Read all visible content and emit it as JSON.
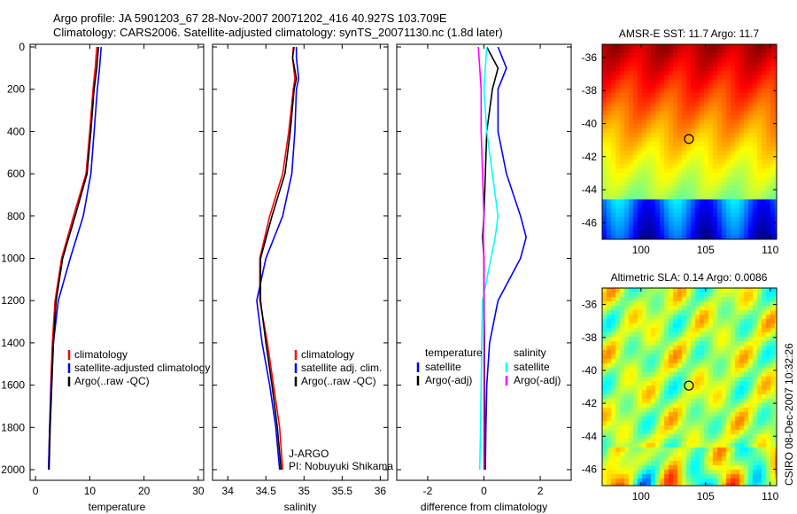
{
  "title_line1": "Argo profile: JA 5901203_67 28-Nov-2007 20071202_416 40.927S 103.709E",
  "title_line2": "Climatology: CARS2006. Satellite-adjusted climatology: synTS_20071130.nc (1.8d later)",
  "credit": "CSIRO 08-Dec-2007 10:32:26",
  "colors": {
    "climatology": "#ff0000",
    "satellite": "#0000ff",
    "argo": "#000000",
    "sal_satellite": "#00ffff",
    "sal_argo": "#ff00ff"
  },
  "chart_data": [
    {
      "type": "line",
      "xlabel": "temperature",
      "ylabel": "",
      "xlim": [
        -1,
        31
      ],
      "ylim": [
        2000,
        0
      ],
      "xticks": [
        "0",
        "10",
        "20",
        "30"
      ],
      "yticks": [
        "0",
        "200",
        "400",
        "600",
        "800",
        "1000",
        "1200",
        "1400",
        "1600",
        "1800",
        "2000"
      ],
      "depth": [
        0,
        100,
        200,
        400,
        600,
        800,
        1000,
        1200,
        1400,
        1600,
        1800,
        2000
      ],
      "series": [
        {
          "name": "climatology",
          "color": "#ff0000",
          "values": [
            11.3,
            11.0,
            10.6,
            10.0,
            9.3,
            7.0,
            4.8,
            3.6,
            3.1,
            2.8,
            2.6,
            2.4
          ]
        },
        {
          "name": "satellite-adjusted climatology",
          "color": "#0000ff",
          "values": [
            12.1,
            11.8,
            11.4,
            10.8,
            10.2,
            8.8,
            6.4,
            4.2,
            3.3,
            2.9,
            2.6,
            2.4
          ]
        },
        {
          "name": "Argo(..raw -QC)",
          "color": "#000000",
          "values": [
            11.6,
            11.3,
            10.8,
            10.2,
            9.5,
            7.3,
            5.0,
            3.8,
            3.3,
            3.0,
            2.7,
            2.5
          ]
        }
      ],
      "legend": [
        "climatology",
        "satellite-adjusted climatology",
        "Argo(..raw -QC)"
      ]
    },
    {
      "type": "line",
      "xlabel": "salinity",
      "xlim": [
        33.8,
        36.1
      ],
      "ylim": [
        2000,
        0
      ],
      "xticks": [
        "34",
        "34.5",
        "35",
        "35.5",
        "36"
      ],
      "depth": [
        0,
        50,
        150,
        200,
        400,
        600,
        800,
        1000,
        1200,
        1400,
        1600,
        1800,
        2000
      ],
      "series": [
        {
          "name": "climatology",
          "color": "#ff0000",
          "values": [
            34.86,
            34.85,
            34.88,
            34.86,
            34.8,
            34.72,
            34.55,
            34.42,
            34.42,
            34.52,
            34.6,
            34.68,
            34.72
          ]
        },
        {
          "name": "satellite adj. clim.",
          "color": "#0000ff",
          "values": [
            34.9,
            34.9,
            34.93,
            34.9,
            34.88,
            34.84,
            34.72,
            34.5,
            34.38,
            34.45,
            34.55,
            34.63,
            34.68
          ]
        },
        {
          "name": "Argo(..raw -QC)",
          "color": "#000000",
          "values": [
            34.87,
            34.85,
            34.9,
            34.87,
            34.82,
            34.75,
            34.58,
            34.43,
            34.43,
            34.5,
            34.58,
            34.65,
            34.7
          ]
        }
      ],
      "legend": [
        "climatology",
        "satellite adj. clim.",
        "Argo(..raw -QC)"
      ],
      "annotation": [
        "J-ARGO",
        "PI: Nobuyuki Shikama"
      ]
    },
    {
      "type": "line",
      "xlabel": "difference from climatology",
      "xlim": [
        -3.1,
        3.1
      ],
      "ylim": [
        2000,
        0
      ],
      "xticks": [
        "-2",
        "0",
        "2"
      ],
      "depth": [
        0,
        100,
        200,
        400,
        600,
        800,
        900,
        1000,
        1200,
        1400,
        1600,
        1800,
        2000
      ],
      "series": [
        {
          "name": "temperature satellite",
          "color": "#0000ff",
          "values": [
            0.5,
            0.8,
            0.5,
            0.5,
            0.8,
            1.3,
            1.5,
            1.3,
            0.5,
            0.2,
            0.1,
            0.07,
            0.05
          ]
        },
        {
          "name": "temperature Argo(-adj)",
          "color": "#000000",
          "values": [
            0.1,
            0.5,
            0.3,
            0.1,
            0.05,
            0.0,
            -0.05,
            0.0,
            0.0,
            0.02,
            0.02,
            0.03,
            0.03
          ]
        },
        {
          "name": "salinity satellite",
          "color": "#00ffff",
          "values": [
            0.1,
            0.05,
            0.0,
            0.1,
            0.3,
            0.5,
            0.4,
            0.25,
            -0.05,
            -0.08,
            -0.1,
            -0.12,
            -0.15
          ]
        },
        {
          "name": "salinity Argo(-adj)",
          "color": "#ff00ff",
          "values": [
            -0.2,
            -0.15,
            -0.1,
            -0.1,
            -0.05,
            0.0,
            -0.02,
            0.0,
            0.0,
            0.0,
            0.0,
            0.0,
            0.0
          ]
        }
      ],
      "legend_headers": [
        "temperature",
        "salinity"
      ],
      "legend": [
        "satellite",
        "Argo(-adj)",
        "satellite",
        "Argo(-adj)"
      ]
    },
    {
      "type": "heatmap",
      "title": "AMSR-E SST: 11.7 Argo: 11.7",
      "xticks": [
        "100",
        "105",
        "110"
      ],
      "yticks": [
        "-36",
        "-38",
        "-40",
        "-42",
        "-44",
        "-46"
      ],
      "xlim": [
        97,
        110.5
      ],
      "ylim": [
        -47,
        -35.2
      ],
      "argo_position": [
        103.709,
        -40.927
      ]
    },
    {
      "type": "heatmap",
      "title": "Altimetric SLA: 0.14 Argo: 0.0086",
      "xticks": [
        "100",
        "105",
        "110"
      ],
      "yticks": [
        "-36",
        "-38",
        "-40",
        "-42",
        "-44",
        "-46"
      ],
      "xlim": [
        97,
        110.5
      ],
      "ylim": [
        -47,
        -35
      ],
      "argo_position": [
        103.709,
        -40.927
      ]
    }
  ]
}
